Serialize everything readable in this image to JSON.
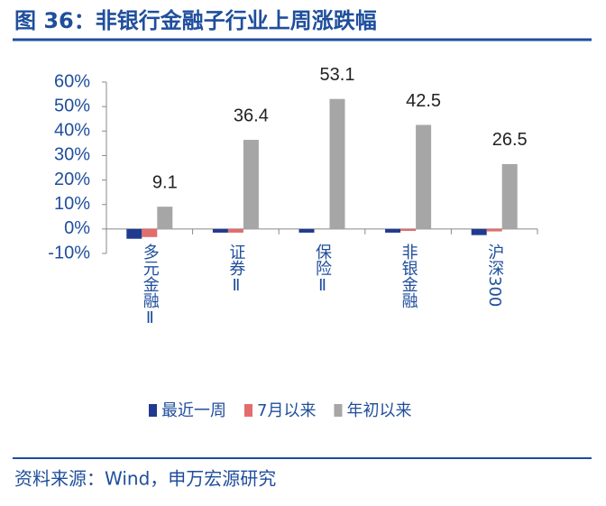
{
  "chart_data": {
    "type": "bar",
    "title": "图 36：非银行金融子行业上周涨跌幅",
    "source": "资料来源：Wind，申万宏源研究",
    "categories": [
      "多元金融Ⅱ",
      "证券Ⅱ",
      "保险Ⅱ",
      "非银金融",
      "沪深300"
    ],
    "series": [
      {
        "name": "最近一周",
        "color": "#1f3a8f",
        "values": [
          -4.0,
          -1.5,
          -1.5,
          -1.5,
          -2.5
        ],
        "show_labels": false
      },
      {
        "name": "7月以来",
        "color": "#e46c6c",
        "values": [
          -3.3,
          -1.5,
          0,
          -0.8,
          -1.0
        ],
        "show_labels": false
      },
      {
        "name": "年初以来",
        "color": "#a6a6a6",
        "values": [
          9.1,
          36.4,
          53.1,
          42.5,
          26.5
        ],
        "show_labels": true
      }
    ],
    "ylim": [
      -10,
      60
    ],
    "yticks": [
      {
        "value": -10,
        "label": "-10%"
      },
      {
        "value": 0,
        "label": "0%"
      },
      {
        "value": 10,
        "label": "10%"
      },
      {
        "value": 20,
        "label": "20%"
      },
      {
        "value": 30,
        "label": "30%"
      },
      {
        "value": 40,
        "label": "40%"
      },
      {
        "value": 50,
        "label": "50%"
      },
      {
        "value": 60,
        "label": "60%"
      }
    ],
    "grid": false,
    "legend": "bottom"
  }
}
